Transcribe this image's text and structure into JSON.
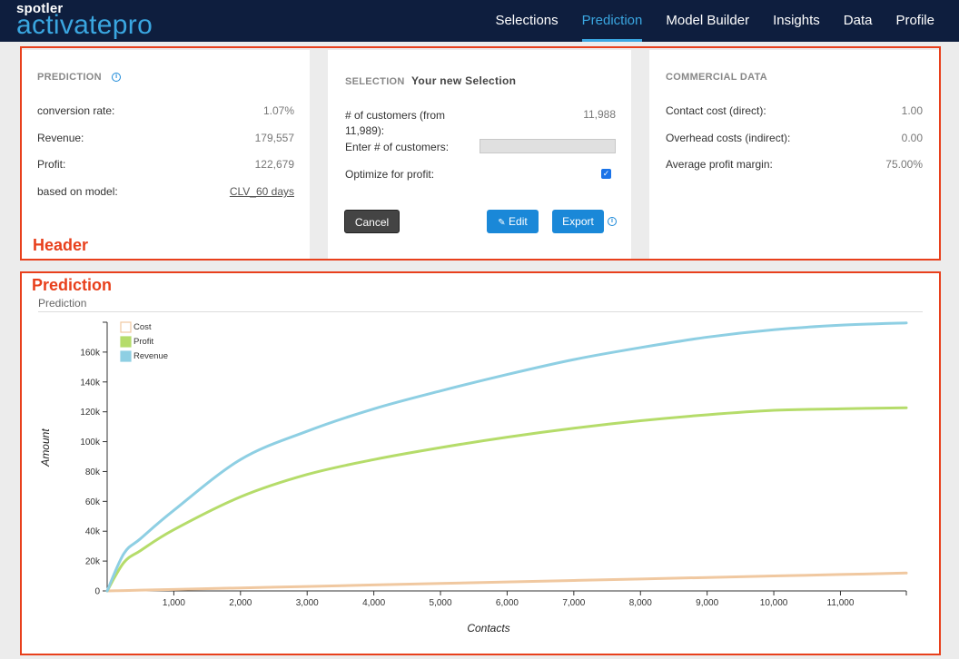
{
  "brand": {
    "top": "spotler",
    "bottom": "activatepro"
  },
  "nav": [
    {
      "label": "Selections",
      "active": false
    },
    {
      "label": "Prediction",
      "active": true
    },
    {
      "label": "Model Builder",
      "active": false
    },
    {
      "label": "Insights",
      "active": false
    },
    {
      "label": "Data",
      "active": false
    },
    {
      "label": "Profile",
      "active": false
    }
  ],
  "header": {
    "label": "Header",
    "prediction": {
      "title": "PREDICTION",
      "info_icon": "info-icon",
      "rows": [
        {
          "label": "conversion rate:",
          "value": "1.07%"
        },
        {
          "label": "Revenue:",
          "value": "179,557"
        },
        {
          "label": "Profit:",
          "value": "122,679"
        },
        {
          "label": "based on model:",
          "value": "CLV_60 days"
        }
      ]
    },
    "selection": {
      "title": "SELECTION",
      "name": "Your new Selection",
      "customers_label": "# of customers (from 11,989):",
      "customers_value": "11,988",
      "enter_label": "Enter # of customers:",
      "enter_value": "",
      "optimize_label": "Optimize for profit:",
      "optimize_checked": true,
      "cancel": "Cancel",
      "edit": "Edit",
      "export": "Export"
    },
    "commercial": {
      "title": "COMMERCIAL DATA",
      "rows": [
        {
          "label": "Contact cost (direct):",
          "value": "1.00"
        },
        {
          "label": "Overhead costs (indirect):",
          "value": "0.00"
        },
        {
          "label": "Average profit margin:",
          "value": "75.00%"
        }
      ]
    }
  },
  "prediction_panel": {
    "label": "Prediction",
    "caption": "Prediction"
  },
  "colors": {
    "nav_bg": "#0e1e3e",
    "accent": "#3aa6e0",
    "button_blue": "#1a88d8",
    "region_outline": "#e8401c",
    "cost": "#f0c8a0",
    "profit": "#b5dc6a",
    "revenue": "#8ecfe3"
  },
  "chart_data": {
    "type": "line",
    "xlabel": "Contacts",
    "ylabel": "Amount",
    "xlim": [
      0,
      11988
    ],
    "ylim": [
      0,
      180000
    ],
    "xticks": [
      1000,
      2000,
      3000,
      4000,
      5000,
      6000,
      7000,
      8000,
      9000,
      10000,
      11000
    ],
    "xtick_labels": [
      "1,000",
      "2,000",
      "3,000",
      "4,000",
      "5,000",
      "6,000",
      "7,000",
      "8,000",
      "9,000",
      "10,000",
      "11,000"
    ],
    "yticks": [
      0,
      20000,
      40000,
      60000,
      80000,
      100000,
      120000,
      140000,
      160000
    ],
    "ytick_labels": [
      "0",
      "20k",
      "40k",
      "60k",
      "80k",
      "100k",
      "120k",
      "140k",
      "160k"
    ],
    "legend": [
      "Cost",
      "Profit",
      "Revenue"
    ],
    "legend_position": "top-left",
    "x": [
      0,
      250,
      500,
      1000,
      2000,
      3000,
      4000,
      5000,
      6000,
      7000,
      8000,
      9000,
      10000,
      11000,
      11988
    ],
    "series": [
      {
        "name": "Cost",
        "values": [
          0,
          250,
          500,
          1000,
          2000,
          3000,
          4000,
          5000,
          6000,
          7000,
          8000,
          9000,
          10000,
          11000,
          11988
        ]
      },
      {
        "name": "Profit",
        "values": [
          0,
          19000,
          27000,
          41000,
          63000,
          78000,
          88000,
          96000,
          103000,
          109000,
          114000,
          118000,
          121000,
          122000,
          122679
        ]
      },
      {
        "name": "Revenue",
        "values": [
          0,
          25000,
          35000,
          54000,
          88000,
          107000,
          122000,
          134000,
          145000,
          155000,
          163000,
          170000,
          175000,
          178000,
          179557
        ]
      }
    ]
  }
}
